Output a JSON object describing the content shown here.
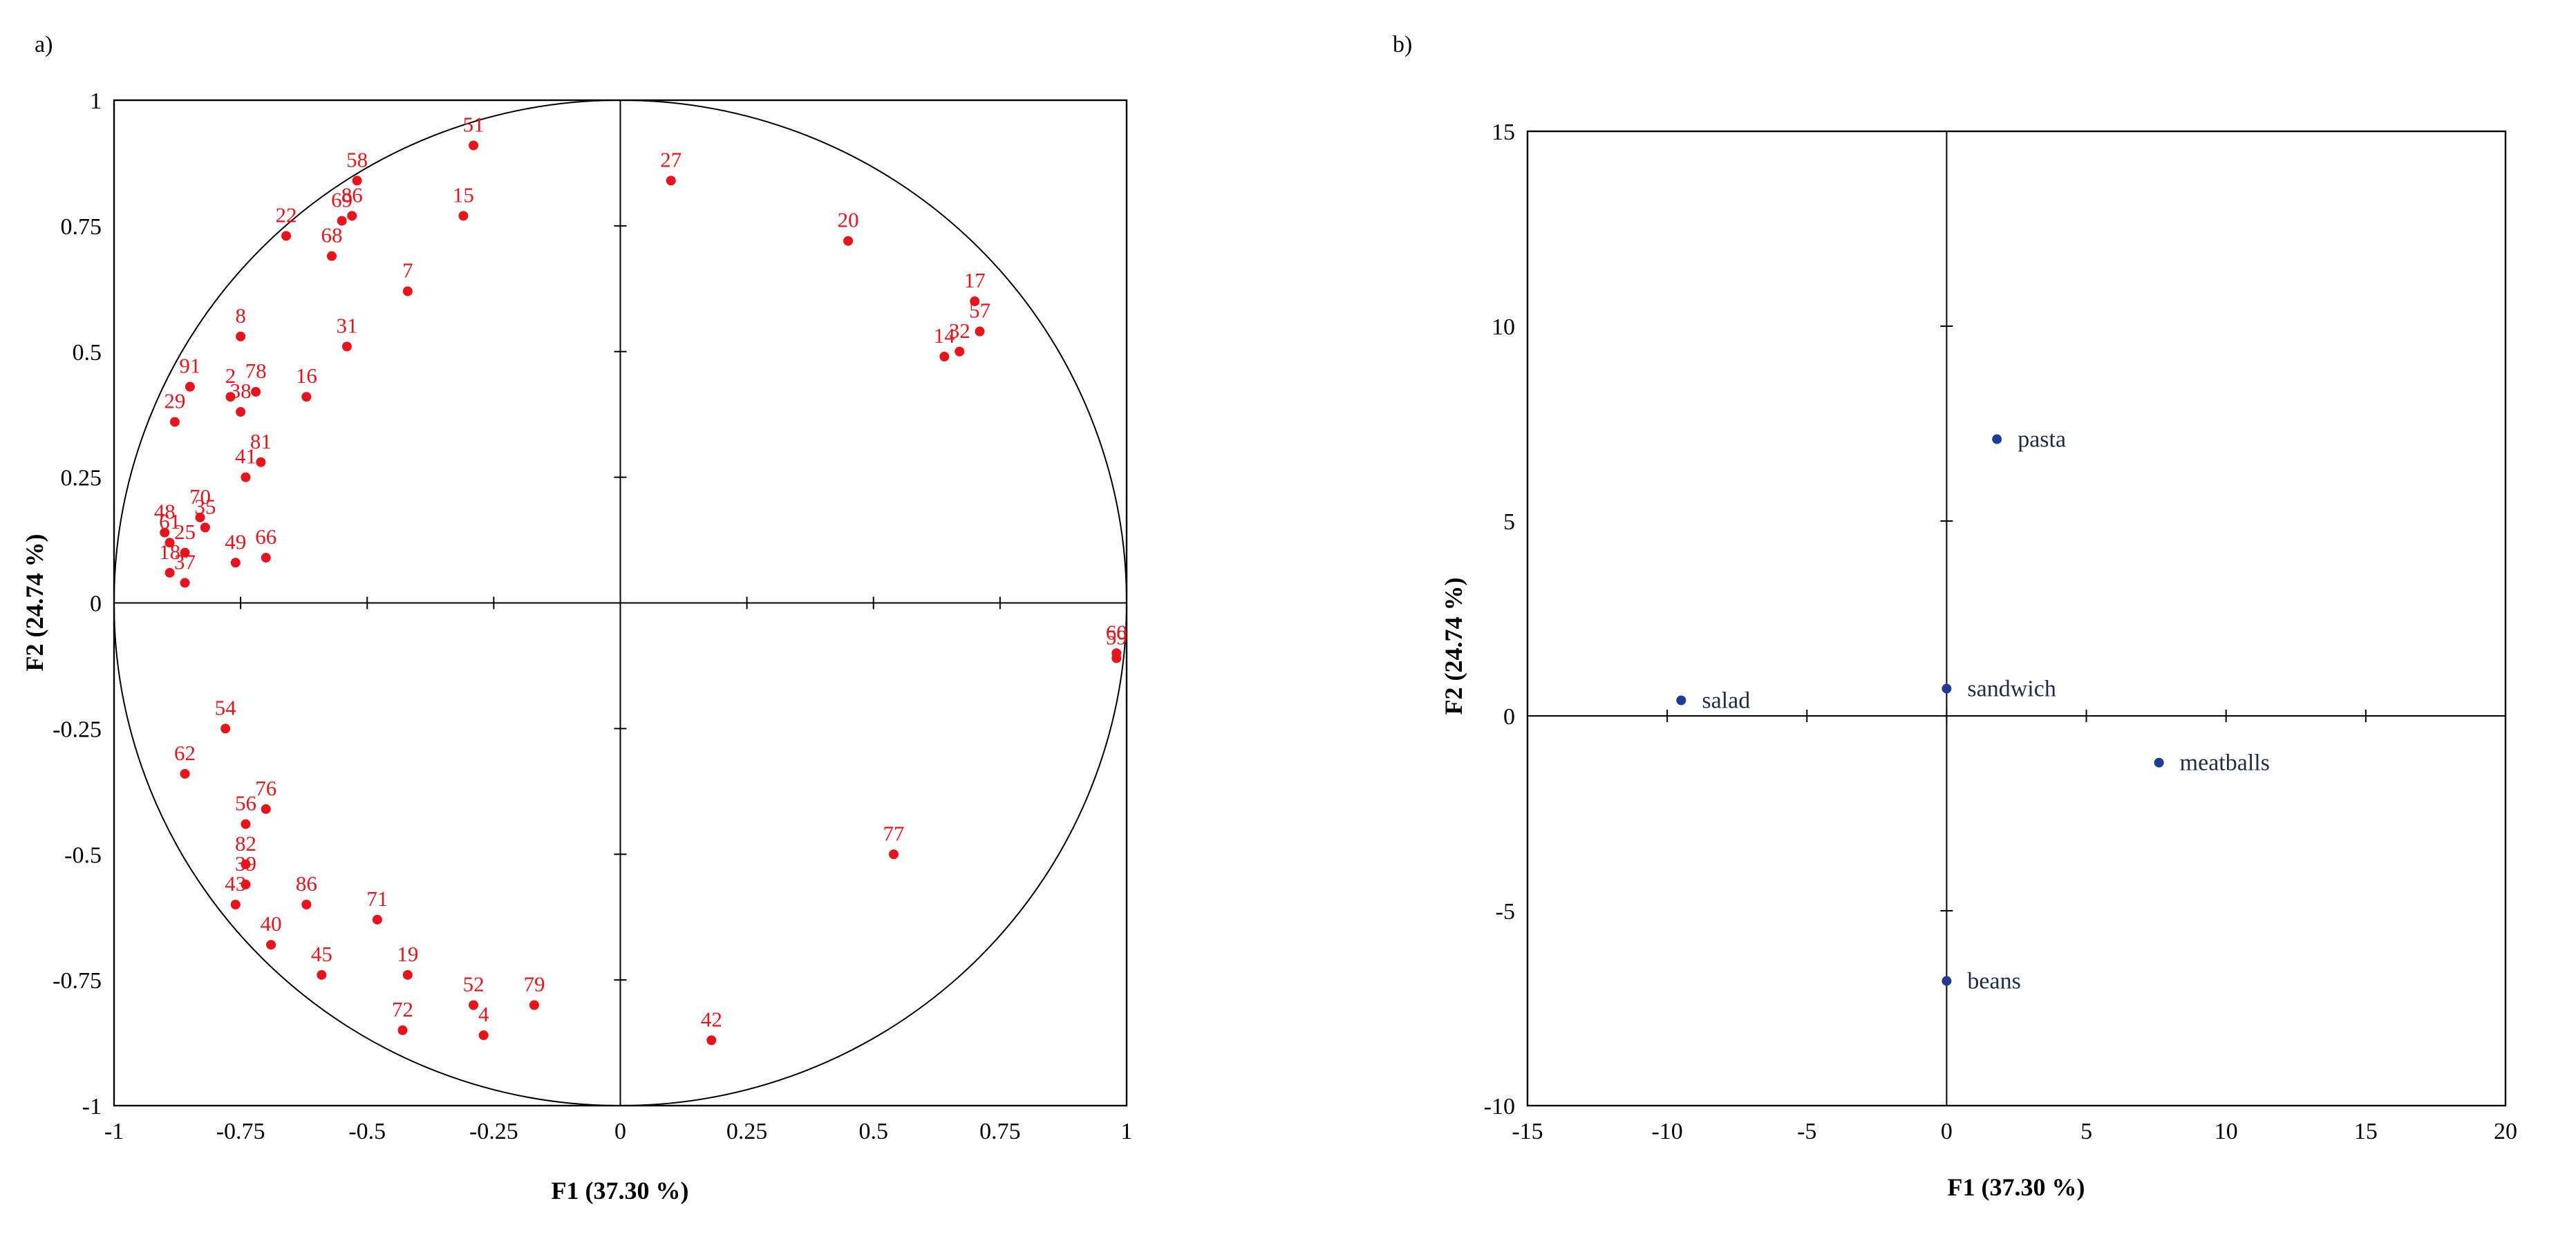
{
  "chart_data": [
    {
      "type": "scatter",
      "panel_label": "a)",
      "title": "",
      "xlabel": "F1 (37.30 %)",
      "ylabel": "F2 (24.74 %)",
      "xlim": [
        -1,
        1
      ],
      "ylim": [
        -1,
        1
      ],
      "x_ticks": [
        "-1",
        "-0.75",
        "-0.5",
        "-0.25",
        "0",
        "0.25",
        "0.5",
        "0.75",
        "1"
      ],
      "y_ticks": [
        "-1",
        "-0.75",
        "-0.5",
        "-0.25",
        "0",
        "0.25",
        "0.5",
        "0.75",
        "1"
      ],
      "correlation_circle": true,
      "marker_color": "#e8141c",
      "points": [
        {
          "label": "51",
          "x": -0.29,
          "y": 0.91
        },
        {
          "label": "58",
          "x": -0.52,
          "y": 0.84
        },
        {
          "label": "86",
          "x": -0.53,
          "y": 0.77
        },
        {
          "label": "69",
          "x": -0.55,
          "y": 0.76
        },
        {
          "label": "15",
          "x": -0.31,
          "y": 0.77
        },
        {
          "label": "22",
          "x": -0.66,
          "y": 0.73
        },
        {
          "label": "68",
          "x": -0.57,
          "y": 0.69
        },
        {
          "label": "7",
          "x": -0.42,
          "y": 0.62
        },
        {
          "label": "31",
          "x": -0.54,
          "y": 0.51
        },
        {
          "label": "8",
          "x": -0.75,
          "y": 0.53
        },
        {
          "label": "91",
          "x": -0.85,
          "y": 0.43
        },
        {
          "label": "2",
          "x": -0.77,
          "y": 0.41
        },
        {
          "label": "78",
          "x": -0.72,
          "y": 0.42
        },
        {
          "label": "38",
          "x": -0.75,
          "y": 0.38
        },
        {
          "label": "16",
          "x": -0.62,
          "y": 0.41
        },
        {
          "label": "29",
          "x": -0.88,
          "y": 0.36
        },
        {
          "label": "81",
          "x": -0.71,
          "y": 0.28
        },
        {
          "label": "41",
          "x": -0.74,
          "y": 0.25
        },
        {
          "label": "48",
          "x": -0.9,
          "y": 0.14
        },
        {
          "label": "70",
          "x": -0.83,
          "y": 0.17
        },
        {
          "label": "35",
          "x": -0.82,
          "y": 0.15
        },
        {
          "label": "61",
          "x": -0.89,
          "y": 0.12
        },
        {
          "label": "25",
          "x": -0.86,
          "y": 0.1
        },
        {
          "label": "49",
          "x": -0.76,
          "y": 0.08
        },
        {
          "label": "66",
          "x": -0.7,
          "y": 0.09
        },
        {
          "label": "18",
          "x": -0.89,
          "y": 0.06
        },
        {
          "label": "37",
          "x": -0.86,
          "y": 0.04
        },
        {
          "label": "27",
          "x": 0.1,
          "y": 0.84
        },
        {
          "label": "20",
          "x": 0.45,
          "y": 0.72
        },
        {
          "label": "17",
          "x": 0.7,
          "y": 0.6
        },
        {
          "label": "57",
          "x": 0.71,
          "y": 0.54
        },
        {
          "label": "32",
          "x": 0.67,
          "y": 0.5
        },
        {
          "label": "14",
          "x": 0.64,
          "y": 0.49
        },
        {
          "label": "59",
          "x": 0.98,
          "y": -0.11
        },
        {
          "label": "60",
          "x": 0.98,
          "y": -0.1
        },
        {
          "label": "54",
          "x": -0.78,
          "y": -0.25
        },
        {
          "label": "62",
          "x": -0.86,
          "y": -0.34
        },
        {
          "label": "76",
          "x": -0.7,
          "y": -0.41
        },
        {
          "label": "56",
          "x": -0.74,
          "y": -0.44
        },
        {
          "label": "82",
          "x": -0.74,
          "y": -0.52
        },
        {
          "label": "39",
          "x": -0.74,
          "y": -0.56
        },
        {
          "label": "43",
          "x": -0.76,
          "y": -0.6
        },
        {
          "label": "40",
          "x": -0.69,
          "y": -0.68
        },
        {
          "label": "86",
          "x": -0.62,
          "y": -0.6
        },
        {
          "label": "71",
          "x": -0.48,
          "y": -0.63
        },
        {
          "label": "45",
          "x": -0.59,
          "y": -0.74
        },
        {
          "label": "19",
          "x": -0.42,
          "y": -0.74
        },
        {
          "label": "72",
          "x": -0.43,
          "y": -0.85
        },
        {
          "label": "52",
          "x": -0.29,
          "y": -0.8
        },
        {
          "label": "4",
          "x": -0.27,
          "y": -0.86
        },
        {
          "label": "79",
          "x": -0.17,
          "y": -0.8
        },
        {
          "label": "77",
          "x": 0.54,
          "y": -0.5
        },
        {
          "label": "42",
          "x": 0.18,
          "y": -0.87
        }
      ]
    },
    {
      "type": "scatter",
      "panel_label": "b)",
      "title": "",
      "xlabel": "F1 (37.30 %)",
      "ylabel": "F2 (24.74 %)",
      "xlim": [
        -15,
        20
      ],
      "ylim": [
        -10,
        15
      ],
      "x_ticks": [
        "-15",
        "-10",
        "-5",
        "0",
        "5",
        "10",
        "15",
        "20"
      ],
      "y_ticks": [
        "-10",
        "-5",
        "0",
        "5",
        "10",
        "15"
      ],
      "marker_color": "#1f3b93",
      "points": [
        {
          "label": "pasta",
          "x": 1.8,
          "y": 7.1
        },
        {
          "label": "sandwich",
          "x": 0.0,
          "y": 0.7
        },
        {
          "label": "salad",
          "x": -9.5,
          "y": 0.4
        },
        {
          "label": "meatballs",
          "x": 7.6,
          "y": -1.2
        },
        {
          "label": "beans",
          "x": 0.0,
          "y": -6.8
        }
      ]
    }
  ]
}
